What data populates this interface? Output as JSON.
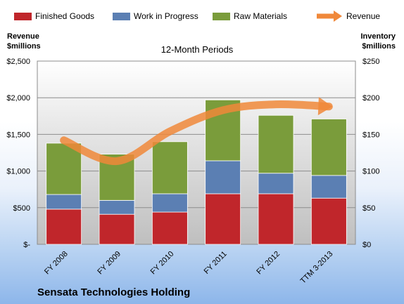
{
  "chart_data": {
    "type": "bar",
    "stacked": true,
    "subtitle": "12-Month Periods",
    "company": "Sensata Technologies Holding",
    "left_axis": {
      "title_line1": "Revenue",
      "title_line2": "$millions",
      "ylim": [
        0,
        2500
      ],
      "tick_values": [
        0,
        500,
        1000,
        1500,
        2000,
        2500
      ],
      "tick_labels": [
        "$-",
        "$500",
        "$1,000",
        "$1,500",
        "$2,000",
        "$2,500"
      ]
    },
    "right_axis": {
      "title_line1": "Inventory",
      "title_line2": "$millions",
      "ylim": [
        0,
        250
      ],
      "tick_values": [
        0,
        50,
        100,
        150,
        200,
        250
      ],
      "tick_labels": [
        "$0",
        "$50",
        "$100",
        "$150",
        "$200",
        "$250"
      ]
    },
    "categories": [
      "FY 2008",
      "FY 2009",
      "FY 2010",
      "FY 2011",
      "FY 2012",
      "TTM 3-2013"
    ],
    "series": [
      {
        "name": "Finished Goods",
        "color": "#c0262b",
        "axis": "right",
        "values": [
          48,
          41,
          44,
          69,
          69,
          63
        ]
      },
      {
        "name": "Work in Progress",
        "color": "#5b7fb3",
        "axis": "right",
        "values": [
          20,
          19,
          25,
          45,
          28,
          31
        ]
      },
      {
        "name": "Raw Materials",
        "color": "#7a9c3b",
        "axis": "right",
        "values": [
          70,
          63,
          71,
          83,
          79,
          77
        ]
      },
      {
        "name": "Revenue",
        "color": "#f0883a",
        "axis": "left",
        "type": "line",
        "values": [
          1420,
          1135,
          1540,
          1830,
          1910,
          1880
        ]
      }
    ],
    "grid": true,
    "legend_position": "top"
  }
}
